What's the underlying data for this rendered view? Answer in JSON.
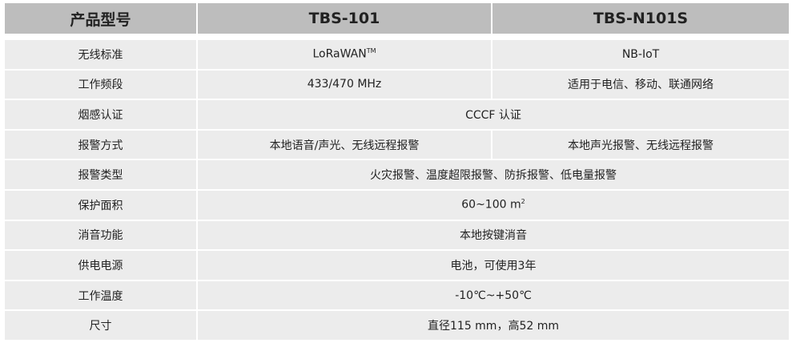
{
  "header": {
    "label": "产品型号",
    "models": [
      "TBS-101",
      "TBS-N101S"
    ]
  },
  "rows": [
    {
      "label": "无线标准",
      "a": "LoRaWAN",
      "a_sup": "TM",
      "b": "NB-IoT"
    },
    {
      "label": "工作频段",
      "a": "433/470 MHz",
      "b": "适用于电信、移动、联通网络"
    },
    {
      "label": "烟感认证",
      "both": "CCCF 认证"
    },
    {
      "label": "报警方式",
      "a": "本地语音/声光、无线远程报警",
      "b": "本地声光报警、无线远程报警"
    },
    {
      "label": "报警类型",
      "both": "火灾报警、温度超限报警、防拆报警、低电量报警"
    },
    {
      "label": "保护面积",
      "both": "60~100 m",
      "both_sup": "2"
    },
    {
      "label": "消音功能",
      "both": "本地按键消音"
    },
    {
      "label": "供电电源",
      "both": "电池，可使用3年"
    },
    {
      "label": "工作温度",
      "both": "-10℃~+50℃"
    },
    {
      "label": "尺寸",
      "both": "直径115 mm，高52 mm"
    }
  ]
}
